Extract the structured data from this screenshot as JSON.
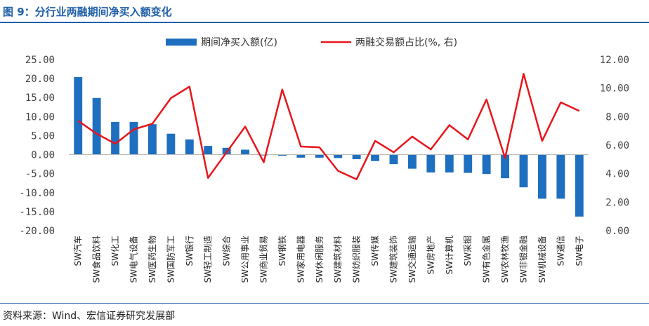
{
  "title": "图 9：分行业两融期间净买入额变化",
  "source": "资料来源：Wind、宏信证券研究发展部",
  "colors": {
    "bar": "#1f6fc0",
    "line": "#e8151b",
    "title": "#1f5fa8"
  },
  "chart_data": {
    "type": "bar+line",
    "legend_position": "top-center",
    "grid": false,
    "categories": [
      "SW汽车",
      "SW食品饮料",
      "SW化工",
      "SW电气设备",
      "SW医药生物",
      "SW国防军工",
      "SW银行",
      "SW轻工制造",
      "SW综合",
      "SW公用事业",
      "SW商业贸易",
      "SW钢铁",
      "SW家用电器",
      "SW休闲服务",
      "SW建筑材料",
      "SW纺织服装",
      "SW传媒",
      "SW建筑装饰",
      "SW交通运输",
      "SW房地产",
      "SW计算机",
      "SW采掘",
      "SW有色金属",
      "SW农林牧渔",
      "SW非银金融",
      "SW机械设备",
      "SW通信",
      "SW电子"
    ],
    "series": [
      {
        "name": "期间净买入额(亿)",
        "type": "bar",
        "axis": "left",
        "values": [
          20.4,
          14.9,
          8.6,
          8.6,
          8.0,
          5.5,
          4.0,
          2.3,
          1.8,
          1.3,
          -0.2,
          -0.3,
          -0.8,
          -0.8,
          -0.9,
          -1.2,
          -1.7,
          -2.5,
          -3.7,
          -4.7,
          -4.7,
          -4.8,
          -5.1,
          -6.2,
          -8.6,
          -11.6,
          -11.6,
          -16.3
        ]
      },
      {
        "name": "两融交易额占比(%, 右)",
        "type": "line",
        "axis": "right",
        "values": [
          7.7,
          6.8,
          6.1,
          7.1,
          7.5,
          9.3,
          10.1,
          3.7,
          5.5,
          7.3,
          4.8,
          9.9,
          5.9,
          5.85,
          4.2,
          3.6,
          6.3,
          5.5,
          6.6,
          5.7,
          7.4,
          6.4,
          9.2,
          5.1,
          11.0,
          6.3,
          9.0,
          8.4
        ]
      }
    ],
    "y_left": {
      "ylim": [
        -20,
        25
      ],
      "ticks": [
        "25.00",
        "20.00",
        "15.00",
        "10.00",
        "5.00",
        "0.00",
        "-5.00",
        "-10.00",
        "-15.00",
        "-20.00"
      ],
      "tick_values": [
        25,
        20,
        15,
        10,
        5,
        0,
        -5,
        -10,
        -15,
        -20
      ]
    },
    "y_right": {
      "ylim": [
        0,
        12
      ],
      "ticks": [
        "12.00",
        "10.00",
        "8.00",
        "6.00",
        "4.00",
        "2.00",
        "0.00"
      ],
      "tick_values": [
        12,
        10,
        8,
        6,
        4,
        2,
        0
      ]
    }
  }
}
